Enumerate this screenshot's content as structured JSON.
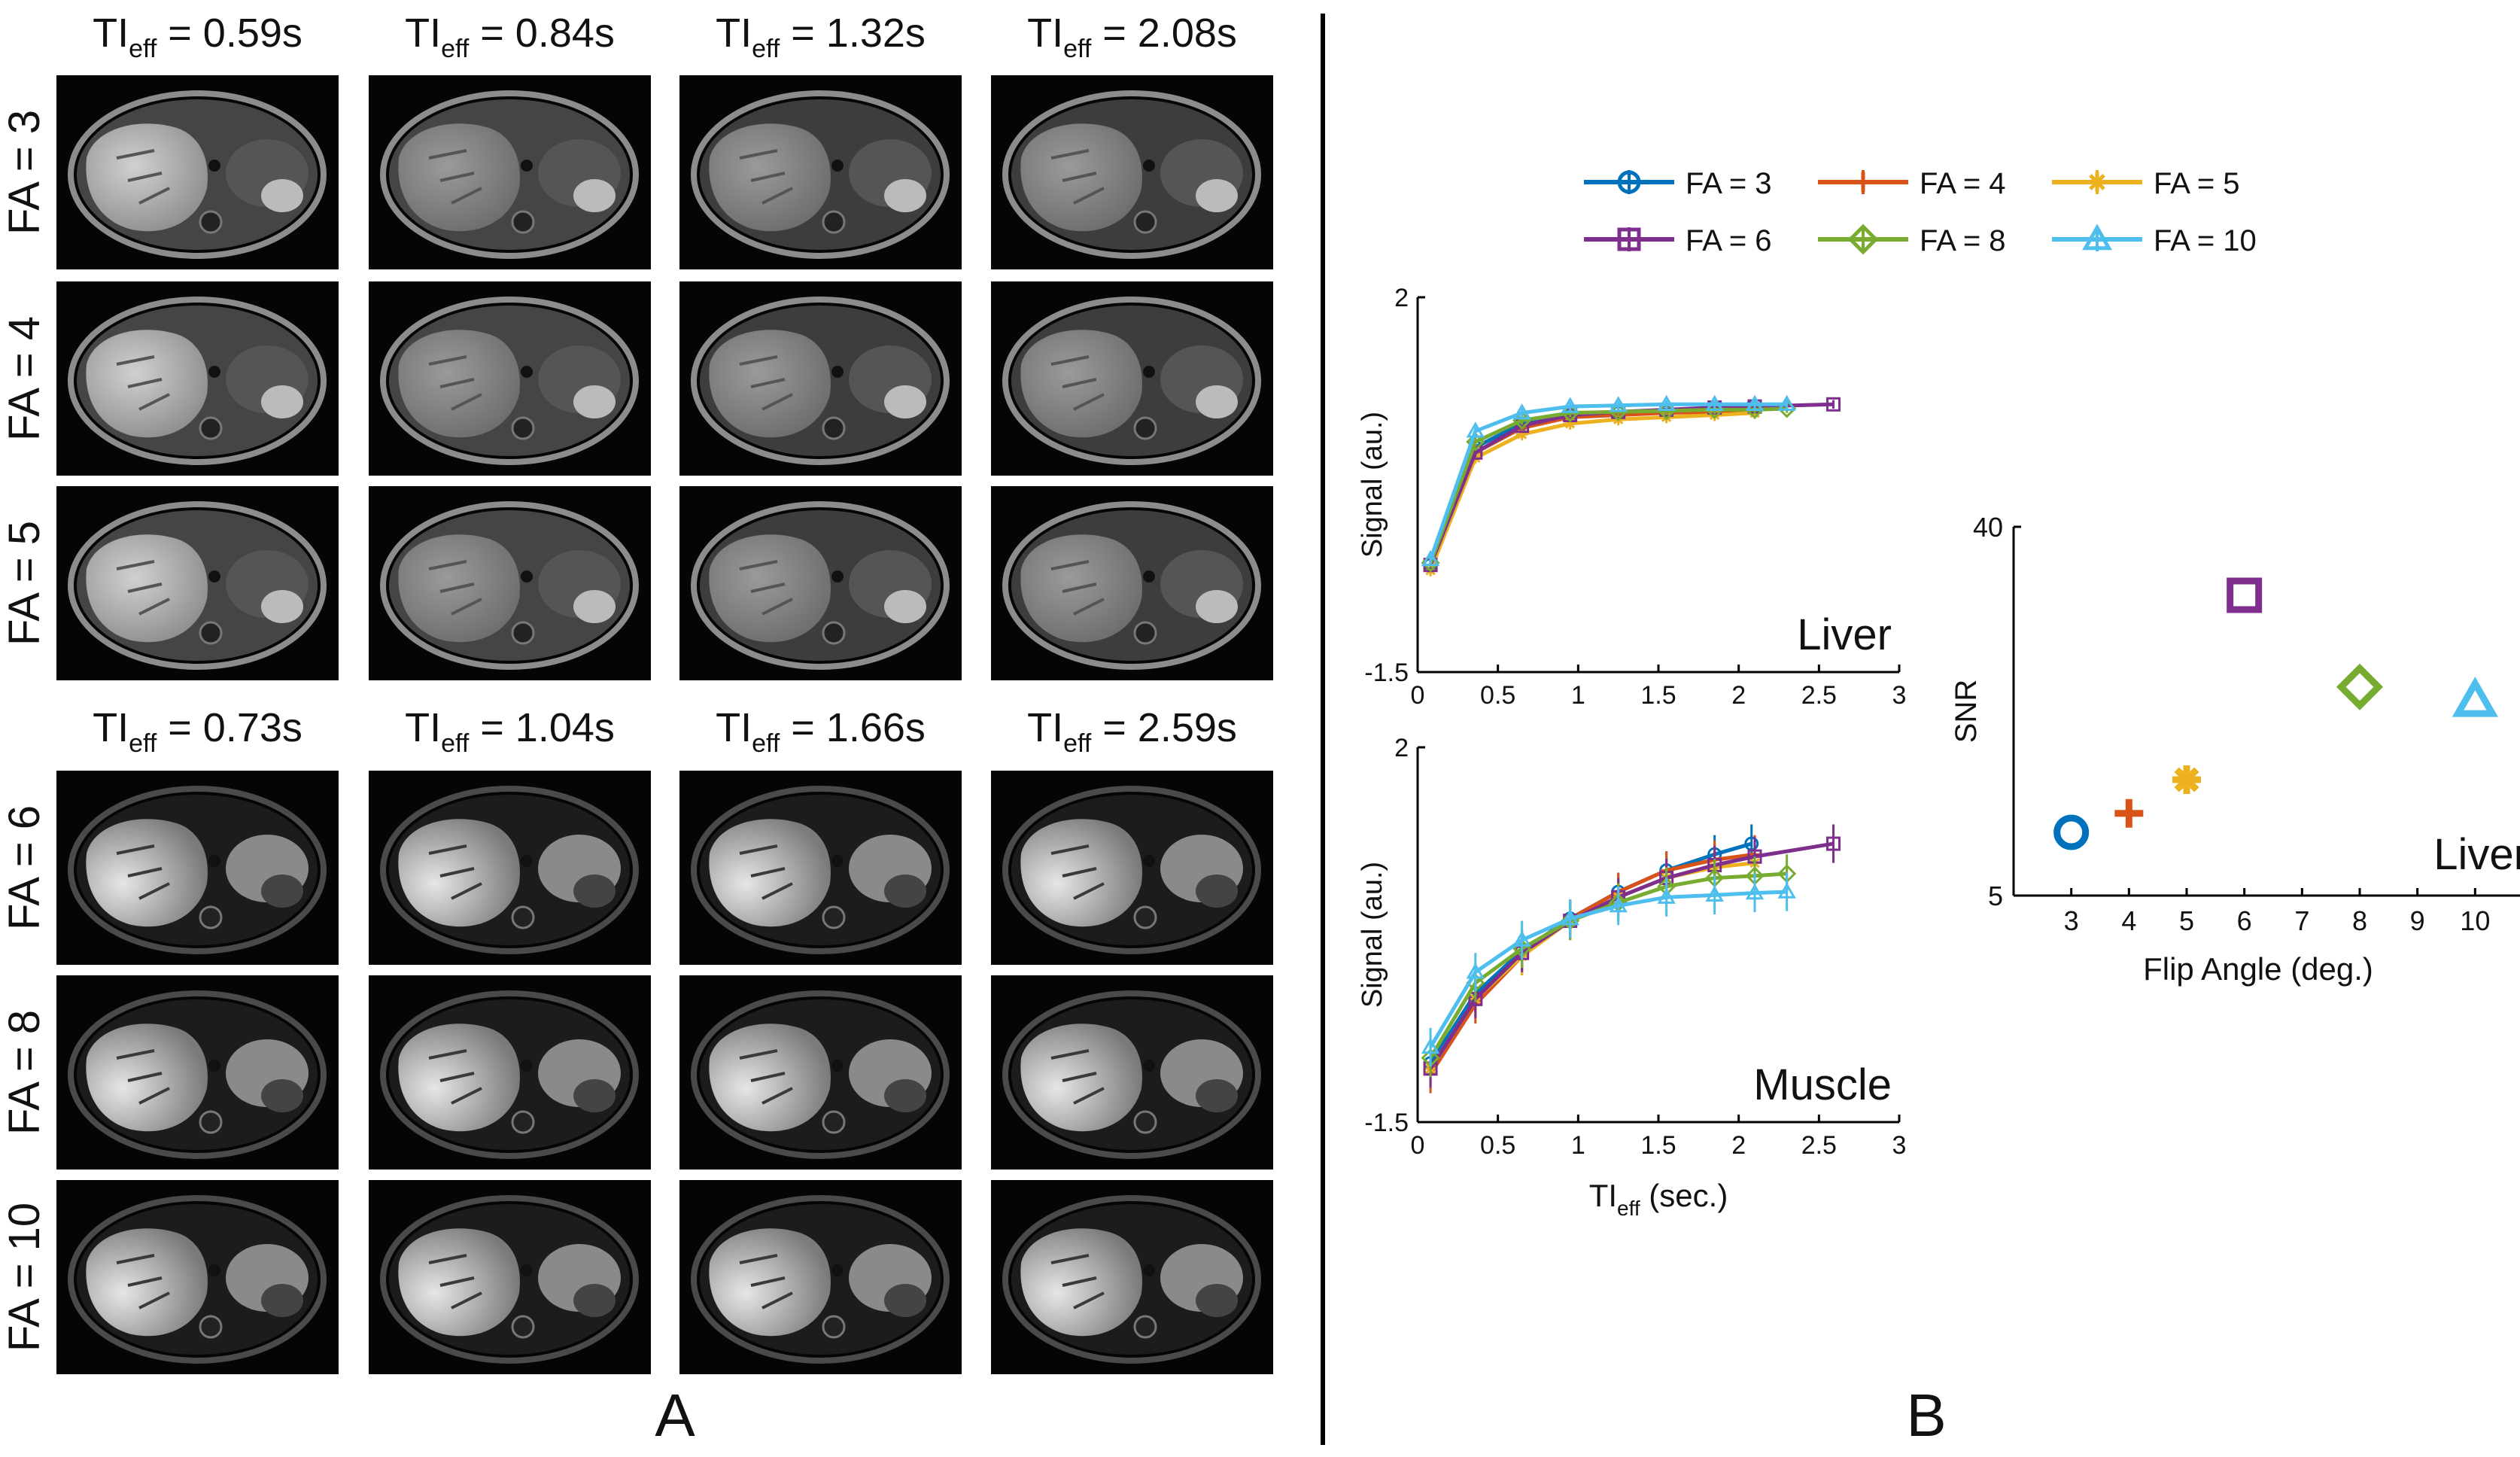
{
  "panel_a": {
    "label": "A",
    "top_headers": [
      "0.59s",
      "0.84s",
      "1.32s",
      "2.08s"
    ],
    "bottom_headers": [
      "0.73s",
      "1.04s",
      "1.66s",
      "2.59s"
    ],
    "header_prefix": "TI",
    "header_sub": "eff",
    "header_eq": " = ",
    "row_labels_top": [
      "FA = 3",
      "FA = 4",
      "FA = 5"
    ],
    "row_labels_bottom": [
      "FA = 6",
      "FA = 8",
      "FA = 10"
    ],
    "image_description": "abdominal MRI slice (liver)"
  },
  "panel_b": {
    "label": "B",
    "legend": [
      {
        "name": "FA = 3",
        "color": "#0072BD",
        "marker": "circle"
      },
      {
        "name": "FA = 4",
        "color": "#D95319",
        "marker": "plus"
      },
      {
        "name": "FA = 5",
        "color": "#EDB120",
        "marker": "asterisk"
      },
      {
        "name": "FA = 6",
        "color": "#7E2F8E",
        "marker": "square"
      },
      {
        "name": "FA = 8",
        "color": "#77AC30",
        "marker": "diamond"
      },
      {
        "name": "FA = 10",
        "color": "#4DBEEE",
        "marker": "triangle"
      }
    ]
  },
  "chart_data": [
    {
      "type": "line",
      "annotation": "Liver",
      "xlabel": "",
      "ylabel": "Signal (au.)",
      "xlim": [
        0,
        3
      ],
      "ylim": [
        -1.5,
        2
      ],
      "xticks": [
        "0",
        "0.5",
        "1",
        "1.5",
        "2",
        "2.5",
        "3"
      ],
      "yticks": [
        "-1.5",
        "2"
      ],
      "series": [
        {
          "name": "FA = 3",
          "x": [
            0.08,
            0.36,
            0.65,
            0.95,
            1.25,
            1.55,
            1.85,
            2.08
          ],
          "y": [
            -0.5,
            0.6,
            0.82,
            0.9,
            0.92,
            0.93,
            0.95,
            0.97
          ]
        },
        {
          "name": "FA = 4",
          "x": [
            0.08,
            0.36,
            0.65,
            0.95,
            1.25,
            1.55,
            1.85,
            2.1
          ],
          "y": [
            -0.5,
            0.55,
            0.78,
            0.88,
            0.9,
            0.92,
            0.93,
            0.95
          ]
        },
        {
          "name": "FA = 5",
          "x": [
            0.08,
            0.36,
            0.65,
            0.95,
            1.25,
            1.55,
            1.85,
            2.1
          ],
          "y": [
            -0.55,
            0.5,
            0.72,
            0.82,
            0.86,
            0.88,
            0.9,
            0.92
          ]
        },
        {
          "name": "FA = 6",
          "x": [
            0.08,
            0.36,
            0.65,
            0.95,
            1.25,
            1.55,
            1.85,
            2.1,
            2.59
          ],
          "y": [
            -0.5,
            0.55,
            0.8,
            0.9,
            0.93,
            0.95,
            0.97,
            0.98,
            1.0
          ]
        },
        {
          "name": "FA = 8",
          "x": [
            0.08,
            0.36,
            0.65,
            0.95,
            1.25,
            1.55,
            1.85,
            2.1,
            2.3
          ],
          "y": [
            -0.48,
            0.65,
            0.85,
            0.92,
            0.93,
            0.94,
            0.95,
            0.95,
            0.96
          ]
        },
        {
          "name": "FA = 10",
          "x": [
            0.08,
            0.36,
            0.65,
            0.95,
            1.25,
            1.55,
            1.85,
            2.1,
            2.3
          ],
          "y": [
            -0.45,
            0.75,
            0.92,
            0.98,
            0.99,
            1.0,
            1.0,
            1.0,
            1.0
          ]
        }
      ]
    },
    {
      "type": "line",
      "annotation": "Muscle",
      "xlabel": "TI",
      "xlabel_sub": "eff",
      "xlabel_suffix": " (sec.)",
      "ylabel": "Signal (au.)",
      "xlim": [
        0,
        3
      ],
      "ylim": [
        -1.5,
        2
      ],
      "xticks": [
        "0",
        "0.5",
        "1",
        "1.5",
        "2",
        "2.5",
        "3"
      ],
      "yticks": [
        "-1.5",
        "2"
      ],
      "series": [
        {
          "name": "FA = 3",
          "x": [
            0.08,
            0.36,
            0.65,
            0.95,
            1.25,
            1.55,
            1.85,
            2.08
          ],
          "y": [
            -0.95,
            -0.3,
            0.1,
            0.4,
            0.65,
            0.85,
            1.0,
            1.1
          ]
        },
        {
          "name": "FA = 4",
          "x": [
            0.08,
            0.36,
            0.65,
            0.95,
            1.25,
            1.55,
            1.85,
            2.1
          ],
          "y": [
            -1.05,
            -0.4,
            0.05,
            0.4,
            0.65,
            0.85,
            0.95,
            1.0
          ]
        },
        {
          "name": "FA = 5",
          "x": [
            0.08,
            0.36,
            0.65,
            0.95,
            1.25,
            1.55,
            1.85,
            2.1
          ],
          "y": [
            -1.0,
            -0.35,
            0.05,
            0.38,
            0.6,
            0.78,
            0.88,
            0.92
          ]
        },
        {
          "name": "FA = 6",
          "x": [
            0.08,
            0.36,
            0.65,
            0.95,
            1.25,
            1.55,
            1.85,
            2.1,
            2.59
          ],
          "y": [
            -1.0,
            -0.35,
            0.08,
            0.38,
            0.6,
            0.78,
            0.9,
            0.98,
            1.1
          ]
        },
        {
          "name": "FA = 8",
          "x": [
            0.08,
            0.36,
            0.65,
            0.95,
            1.25,
            1.55,
            1.85,
            2.1,
            2.3
          ],
          "y": [
            -0.9,
            -0.2,
            0.12,
            0.38,
            0.55,
            0.7,
            0.78,
            0.8,
            0.82
          ]
        },
        {
          "name": "FA = 10",
          "x": [
            0.08,
            0.36,
            0.65,
            0.95,
            1.25,
            1.55,
            1.85,
            2.1,
            2.3
          ],
          "y": [
            -0.8,
            -0.1,
            0.2,
            0.4,
            0.52,
            0.6,
            0.62,
            0.64,
            0.65
          ]
        }
      ]
    },
    {
      "type": "scatter",
      "annotation": "Liver",
      "xlabel": "Flip Angle (deg.)",
      "ylabel": "SNR",
      "xlim": [
        2,
        11
      ],
      "ylim": [
        5,
        40
      ],
      "xticks": [
        "3",
        "4",
        "5",
        "6",
        "7",
        "8",
        "9",
        "10"
      ],
      "yticks": [
        "5",
        "40"
      ],
      "points": [
        {
          "name": "FA = 3",
          "x": 3,
          "y": 11.0
        },
        {
          "name": "FA = 4",
          "x": 4,
          "y": 12.8
        },
        {
          "name": "FA = 5",
          "x": 5,
          "y": 16.0
        },
        {
          "name": "FA = 6",
          "x": 6,
          "y": 33.5
        },
        {
          "name": "FA = 8",
          "x": 8,
          "y": 24.8
        },
        {
          "name": "FA = 10",
          "x": 10,
          "y": 23.5
        }
      ]
    }
  ]
}
